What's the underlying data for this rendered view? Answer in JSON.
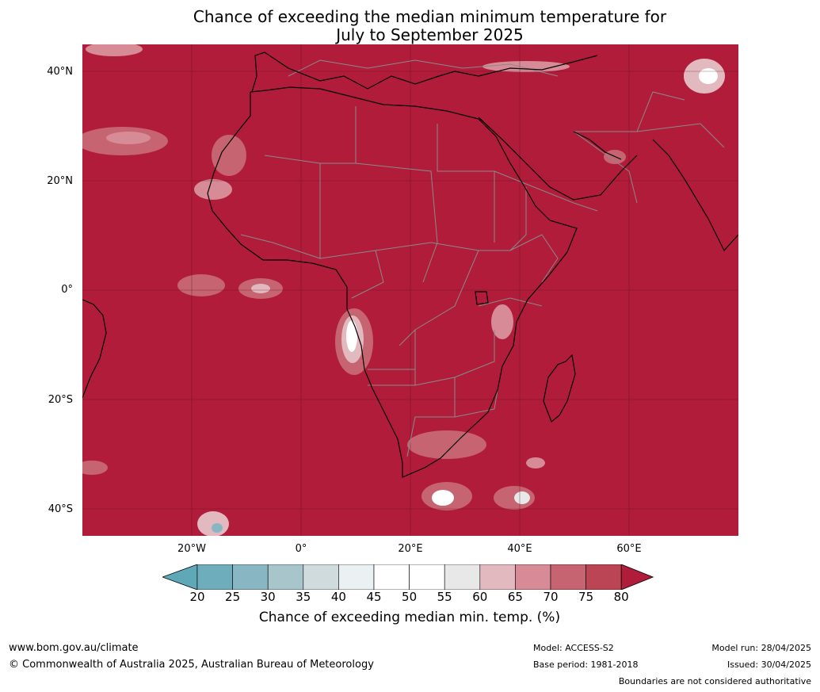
{
  "title_line1": "Chance of exceeding the median minimum temperature for",
  "title_line2": "July to September 2025",
  "lat_labels": [
    "40°N",
    "20°N",
    "0°",
    "20°S",
    "40°S"
  ],
  "lon_labels": [
    "20°W",
    "0°",
    "20°E",
    "40°E",
    "60°E"
  ],
  "colorbar": {
    "ticks": [
      "20",
      "25",
      "30",
      "35",
      "40",
      "45",
      "50",
      "55",
      "60",
      "65",
      "70",
      "75",
      "80"
    ],
    "colors": [
      "#5fa8b7",
      "#6eaebc",
      "#88b7c3",
      "#a7c5ca",
      "#cfdbdc",
      "#ebf0f2",
      "#ffffff",
      "#ffffff",
      "#e8e8e8",
      "#e2b9bf",
      "#d68b96",
      "#c66471",
      "#bb4555",
      "#b01c3a"
    ],
    "label": "Chance of exceeding median min. temp. (%)"
  },
  "map_colors": {
    "base": "#b01c3a",
    "coast": "#000000",
    "borders": "#8a8a8a"
  },
  "footer": {
    "url": "www.bom.gov.au/climate",
    "copyright": "© Commonwealth of Australia 2025, Australian Bureau of Meteorology",
    "model": "Model: ACCESS-S2",
    "base_period": "Base period: 1981-2018",
    "model_run": "Model run: 28/04/2025",
    "issued": "Issued: 30/04/2025",
    "disclaimer": "Boundaries are not considered authoritative"
  }
}
